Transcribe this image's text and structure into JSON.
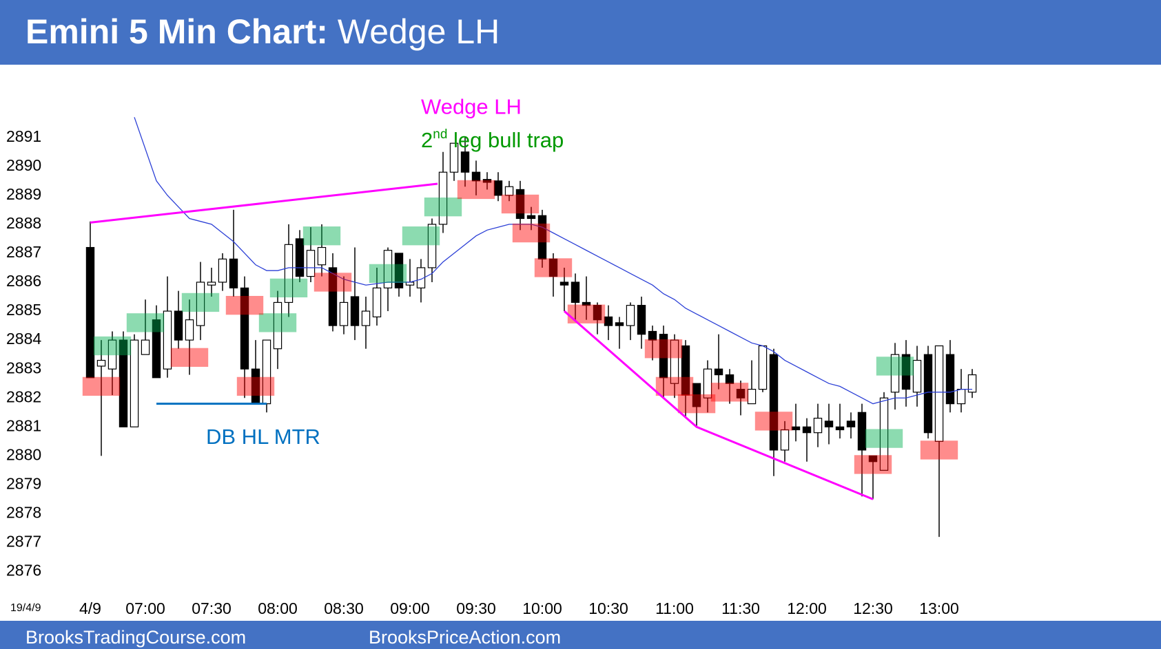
{
  "chart_data": {
    "type": "candlestick",
    "title": "Emini 5 Min Chart:",
    "subtitle": "Wedge LH",
    "date_label": "19/4/9",
    "footer": [
      "BrooksTradingCourse.com",
      "BrooksPriceAction.com"
    ],
    "annotations": [
      {
        "text": "Wedge LH",
        "color": "#ff00ff",
        "at": [
          30,
          2892.0
        ]
      },
      {
        "text": "2",
        "sup": "nd",
        "rest": " leg bull trap",
        "color": "#009900",
        "at": [
          30,
          2890.85
        ]
      },
      {
        "text": "DB HL MTR",
        "color": "#0070c0",
        "at": [
          10.5,
          2880.6
        ]
      }
    ],
    "open": [
      2887.2,
      2883.1,
      2883.0,
      2884.0,
      2881.0,
      2883.5,
      2884.7,
      2883.0,
      2885.0,
      2884.0,
      2884.5,
      2885.9,
      2886.0,
      2886.8,
      2885.8,
      2883.0,
      2881.8,
      2883.7,
      2885.3,
      2887.5,
      2886.2,
      2886.6,
      2886.5,
      2884.5,
      2885.5,
      2884.5,
      2884.8,
      2885.8,
      2887.0,
      2885.9,
      2885.8,
      2886.5,
      2888.0,
      2889.8,
      2890.5,
      2889.8,
      2889.55,
      2889.5,
      2889.0,
      2889.2,
      2888.3,
      2888.3,
      2886.8,
      2886.0,
      2886.0,
      2885.3,
      2885.2,
      2884.8,
      2884.6,
      2884.5,
      2885.2,
      2884.3,
      2884.2,
      2882.5,
      2883.8,
      2882.5,
      2882.0,
      2883.0,
      2882.8,
      2882.3,
      2881.8,
      2882.3,
      2883.5,
      2880.2,
      2881.0,
      2881.0,
      2880.8,
      2881.2,
      2881.0,
      2881.2,
      2881.5,
      2880.0,
      2879.5,
      2882.2,
      2883.5,
      2882.2,
      2883.5,
      2880.5,
      2883.5,
      2881.8,
      2882.2
    ],
    "high": [
      2888.1,
      2884.0,
      2884.3,
      2884.3,
      2884.2,
      2885.4,
      2885.2,
      2886.2,
      2885.7,
      2885.4,
      2886.7,
      2886.5,
      2887.0,
      2888.5,
      2886.2,
      2884.0,
      2884.0,
      2885.7,
      2888.0,
      2887.8,
      2887.9,
      2888.0,
      2887.0,
      2886.2,
      2887.2,
      2885.5,
      2886.5,
      2887.2,
      2887.0,
      2886.8,
      2886.8,
      2888.2,
      2890.5,
      2890.8,
      2891.0,
      2890.2,
      2889.8,
      2889.8,
      2889.5,
      2889.5,
      2888.6,
      2888.5,
      2887.0,
      2886.5,
      2886.3,
      2886.2,
      2885.3,
      2885.2,
      2884.8,
      2885.3,
      2885.5,
      2884.5,
      2884.5,
      2884.2,
      2884.0,
      2882.5,
      2883.3,
      2884.2,
      2883.0,
      2882.6,
      2883.3,
      2883.8,
      2883.7,
      2881.2,
      2881.8,
      2881.3,
      2881.8,
      2881.8,
      2881.8,
      2881.5,
      2881.8,
      2880.0,
      2882.2,
      2883.9,
      2884.0,
      2883.8,
      2883.8,
      2883.8,
      2884.0,
      2883.0,
      2883.0
    ],
    "low": [
      2882.7,
      2880.0,
      2882.1,
      2881.0,
      2881.0,
      2883.5,
      2882.7,
      2882.7,
      2883.7,
      2882.8,
      2884.0,
      2885.5,
      2885.7,
      2885.5,
      2882.0,
      2881.8,
      2881.5,
      2883.0,
      2884.8,
      2886.0,
      2886.0,
      2886.2,
      2884.3,
      2884.2,
      2884.0,
      2883.7,
      2884.5,
      2885.0,
      2885.5,
      2885.5,
      2885.3,
      2886.0,
      2887.7,
      2889.5,
      2889.3,
      2889.0,
      2889.2,
      2888.8,
      2888.8,
      2887.8,
      2887.8,
      2886.5,
      2885.5,
      2885.0,
      2884.7,
      2884.7,
      2884.2,
      2884.0,
      2883.7,
      2884.0,
      2883.7,
      2883.3,
      2882.0,
      2882.0,
      2881.3,
      2881.0,
      2881.5,
      2882.3,
      2881.8,
      2881.4,
      2881.8,
      2882.2,
      2879.3,
      2879.8,
      2880.5,
      2879.8,
      2880.3,
      2880.4,
      2880.6,
      2880.6,
      2878.6,
      2878.5,
      2879.5,
      2881.6,
      2881.7,
      2881.7,
      2880.6,
      2877.2,
      2881.5,
      2881.5,
      2882.0
    ],
    "close": [
      2882.7,
      2883.3,
      2884.0,
      2881.0,
      2884.0,
      2884.0,
      2882.7,
      2885.0,
      2884.0,
      2884.7,
      2886.0,
      2886.0,
      2886.8,
      2885.8,
      2883.0,
      2881.8,
      2884.0,
      2885.3,
      2887.3,
      2886.2,
      2887.1,
      2887.2,
      2884.5,
      2885.3,
      2884.5,
      2885.0,
      2885.8,
      2887.1,
      2885.8,
      2886.0,
      2886.5,
      2888.0,
      2889.8,
      2890.8,
      2889.8,
      2889.5,
      2889.45,
      2889.0,
      2889.3,
      2888.2,
      2888.2,
      2886.8,
      2886.2,
      2885.9,
      2885.3,
      2885.2,
      2884.7,
      2884.5,
      2884.5,
      2885.2,
      2884.2,
      2884.0,
      2882.7,
      2884.0,
      2882.1,
      2881.7,
      2883.0,
      2882.8,
      2882.5,
      2882.0,
      2882.3,
      2883.8,
      2880.2,
      2880.9,
      2880.9,
      2880.8,
      2881.3,
      2881.0,
      2880.9,
      2881.0,
      2880.2,
      2879.8,
      2882.0,
      2883.5,
      2882.3,
      2883.3,
      2880.8,
      2883.8,
      2881.8,
      2882.3,
      2882.8
    ],
    "ma": {
      "color": "#2b3fd6",
      "values": [
        null,
        null,
        null,
        null,
        2891.7,
        2890.6,
        2889.5,
        2889.0,
        2888.6,
        2888.2,
        2888.1,
        2888.0,
        2887.7,
        2887.4,
        2887.0,
        2886.6,
        2886.4,
        2886.4,
        2886.5,
        2886.5,
        2886.5,
        2886.5,
        2886.3,
        2886.1,
        2886.0,
        2885.9,
        2885.95,
        2886.0,
        2886.0,
        2886.0,
        2886.1,
        2886.3,
        2886.7,
        2887.0,
        2887.3,
        2887.6,
        2887.8,
        2887.9,
        2888.0,
        2888.0,
        2888.0,
        2887.9,
        2887.7,
        2887.5,
        2887.3,
        2887.1,
        2886.9,
        2886.7,
        2886.5,
        2886.3,
        2886.1,
        2885.9,
        2885.6,
        2885.4,
        2885.1,
        2884.9,
        2884.7,
        2884.5,
        2884.3,
        2884.1,
        2883.9,
        2883.8,
        2883.6,
        2883.3,
        2883.1,
        2882.9,
        2882.7,
        2882.5,
        2882.4,
        2882.2,
        2882.0,
        2881.8,
        2881.9,
        2882.0,
        2882.0,
        2882.1,
        2882.2,
        2882.2,
        2882.2,
        2882.3,
        2882.3
      ]
    },
    "zones": [
      {
        "index": 2,
        "price": 2883.8,
        "color": "#00b050"
      },
      {
        "index": 5,
        "price": 2884.6,
        "color": "#00b050"
      },
      {
        "index": 10,
        "price": 2885.3,
        "color": "#00b050"
      },
      {
        "index": 17,
        "price": 2884.6,
        "color": "#00b050"
      },
      {
        "index": 18,
        "price": 2885.8,
        "color": "#00b050"
      },
      {
        "index": 21,
        "price": 2887.6,
        "color": "#00b050"
      },
      {
        "index": 27,
        "price": 2886.3,
        "color": "#00b050"
      },
      {
        "index": 30,
        "price": 2887.6,
        "color": "#00b050"
      },
      {
        "index": 32,
        "price": 2888.6,
        "color": "#00b050"
      },
      {
        "index": 72,
        "price": 2880.6,
        "color": "#00b050"
      },
      {
        "index": 73,
        "price": 2883.1,
        "color": "#00b050"
      },
      {
        "index": 1,
        "price": 2882.4,
        "color": "#ff0000"
      },
      {
        "index": 9,
        "price": 2883.4,
        "color": "#ff0000"
      },
      {
        "index": 14,
        "price": 2885.2,
        "color": "#ff0000"
      },
      {
        "index": 15,
        "price": 2882.4,
        "color": "#ff0000"
      },
      {
        "index": 22,
        "price": 2886.0,
        "color": "#ff0000"
      },
      {
        "index": 35,
        "price": 2889.2,
        "color": "#ff0000"
      },
      {
        "index": 39,
        "price": 2888.7,
        "color": "#ff0000"
      },
      {
        "index": 40,
        "price": 2887.7,
        "color": "#ff0000"
      },
      {
        "index": 42,
        "price": 2886.5,
        "color": "#ff0000"
      },
      {
        "index": 45,
        "price": 2884.9,
        "color": "#ff0000"
      },
      {
        "index": 52,
        "price": 2883.7,
        "color": "#ff0000"
      },
      {
        "index": 53,
        "price": 2882.4,
        "color": "#ff0000"
      },
      {
        "index": 55,
        "price": 2881.8,
        "color": "#ff0000"
      },
      {
        "index": 58,
        "price": 2882.2,
        "color": "#ff0000"
      },
      {
        "index": 62,
        "price": 2881.2,
        "color": "#ff0000"
      },
      {
        "index": 71,
        "price": 2879.7,
        "color": "#ff0000"
      },
      {
        "index": 77,
        "price": 2880.2,
        "color": "#ff0000"
      }
    ],
    "trend_lines": [
      {
        "color": "#ff00ff",
        "points": [
          [
            0,
            2888.06
          ],
          [
            31.5,
            2889.4
          ]
        ]
      },
      {
        "color": "#ff00ff",
        "points": [
          [
            43,
            2885.0
          ],
          [
            55,
            2881.0
          ],
          [
            71,
            2878.5
          ]
        ]
      },
      {
        "color": "#0070c0",
        "points": [
          [
            6,
            2881.8
          ],
          [
            16,
            2881.8
          ]
        ]
      }
    ],
    "xlim": [
      -1,
      81
    ],
    "xticks": [
      {
        "value": 0,
        "label": "4/9"
      },
      {
        "value": 5,
        "label": "07:00"
      },
      {
        "value": 11,
        "label": "07:30"
      },
      {
        "value": 17,
        "label": "08:00"
      },
      {
        "value": 23,
        "label": "08:30"
      },
      {
        "value": 29,
        "label": "09:00"
      },
      {
        "value": 35,
        "label": "09:30"
      },
      {
        "value": 41,
        "label": "10:00"
      },
      {
        "value": 47,
        "label": "10:30"
      },
      {
        "value": 53,
        "label": "11:00"
      },
      {
        "value": 59,
        "label": "11:30"
      },
      {
        "value": 65,
        "label": "12:00"
      },
      {
        "value": 71,
        "label": "12:30"
      },
      {
        "value": 77,
        "label": "13:00"
      }
    ],
    "ylim": [
      2875.3,
      2893.3
    ],
    "yticks": [
      2876,
      2877,
      2878,
      2879,
      2880,
      2881,
      2882,
      2883,
      2884,
      2885,
      2886,
      2887,
      2888,
      2889,
      2890,
      2891
    ]
  }
}
